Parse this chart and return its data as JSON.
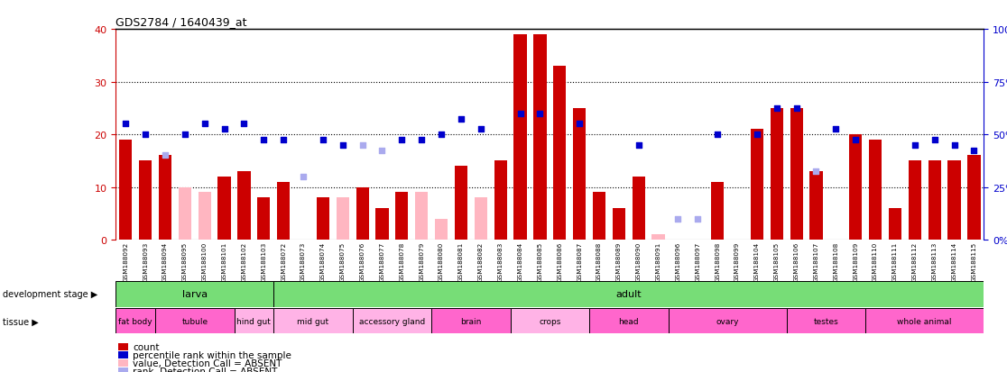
{
  "title": "GDS2784 / 1640439_at",
  "samples": [
    "GSM188092",
    "GSM188093",
    "GSM188094",
    "GSM188095",
    "GSM188100",
    "GSM188101",
    "GSM188102",
    "GSM188103",
    "GSM188072",
    "GSM188073",
    "GSM188074",
    "GSM188075",
    "GSM188076",
    "GSM188077",
    "GSM188078",
    "GSM188079",
    "GSM188080",
    "GSM188081",
    "GSM188082",
    "GSM188083",
    "GSM188084",
    "GSM188085",
    "GSM188086",
    "GSM188087",
    "GSM188088",
    "GSM188089",
    "GSM188090",
    "GSM188091",
    "GSM188096",
    "GSM188097",
    "GSM188098",
    "GSM188099",
    "GSM188104",
    "GSM188105",
    "GSM188106",
    "GSM188107",
    "GSM188108",
    "GSM188109",
    "GSM188110",
    "GSM188111",
    "GSM188112",
    "GSM188113",
    "GSM188114",
    "GSM188115"
  ],
  "count_values": [
    19,
    15,
    16,
    null,
    null,
    12,
    13,
    8,
    11,
    null,
    8,
    null,
    10,
    6,
    9,
    null,
    null,
    14,
    null,
    15,
    39,
    39,
    33,
    25,
    9,
    6,
    12,
    null,
    null,
    null,
    11,
    null,
    21,
    25,
    25,
    13,
    null,
    20,
    19,
    6,
    15,
    15,
    15,
    16
  ],
  "count_absent": [
    null,
    null,
    null,
    10,
    9,
    null,
    null,
    null,
    null,
    null,
    null,
    8,
    null,
    null,
    null,
    9,
    4,
    null,
    8,
    null,
    null,
    null,
    null,
    null,
    null,
    null,
    null,
    1,
    null,
    null,
    null,
    null,
    null,
    null,
    null,
    null,
    null,
    null,
    null,
    null,
    null,
    null,
    null,
    null
  ],
  "rank_values": [
    22,
    20,
    null,
    20,
    22,
    21,
    22,
    19,
    19,
    null,
    19,
    18,
    null,
    null,
    19,
    19,
    20,
    23,
    21,
    null,
    24,
    24,
    null,
    22,
    null,
    null,
    18,
    null,
    null,
    null,
    20,
    null,
    20,
    25,
    25,
    null,
    21,
    19,
    null,
    null,
    18,
    19,
    18,
    17
  ],
  "rank_absent": [
    null,
    null,
    16,
    null,
    null,
    null,
    null,
    null,
    null,
    12,
    null,
    null,
    18,
    17,
    null,
    null,
    null,
    null,
    null,
    null,
    null,
    null,
    null,
    null,
    null,
    null,
    null,
    null,
    4,
    4,
    null,
    null,
    null,
    null,
    null,
    13,
    null,
    null,
    null,
    null,
    null,
    null,
    null,
    null
  ],
  "development_stage": [
    {
      "label": "larva",
      "start": 0,
      "end": 7,
      "color": "#77DD77"
    },
    {
      "label": "adult",
      "start": 8,
      "end": 43,
      "color": "#77DD77"
    }
  ],
  "tissue": [
    {
      "label": "fat body",
      "start": 0,
      "end": 1,
      "color": "#FF66CC"
    },
    {
      "label": "tubule",
      "start": 2,
      "end": 5,
      "color": "#FF66CC"
    },
    {
      "label": "hind gut",
      "start": 6,
      "end": 7,
      "color": "#FFB3E6"
    },
    {
      "label": "mid gut",
      "start": 8,
      "end": 11,
      "color": "#FFB3E6"
    },
    {
      "label": "accessory gland",
      "start": 12,
      "end": 15,
      "color": "#FFB3E6"
    },
    {
      "label": "brain",
      "start": 16,
      "end": 19,
      "color": "#FF66CC"
    },
    {
      "label": "crops",
      "start": 20,
      "end": 23,
      "color": "#FFB3E6"
    },
    {
      "label": "head",
      "start": 24,
      "end": 27,
      "color": "#FF66CC"
    },
    {
      "label": "ovary",
      "start": 28,
      "end": 33,
      "color": "#FF66CC"
    },
    {
      "label": "testes",
      "start": 34,
      "end": 37,
      "color": "#FF66CC"
    },
    {
      "label": "whole animal",
      "start": 38,
      "end": 43,
      "color": "#FF66CC"
    }
  ],
  "ylim_left": [
    0,
    40
  ],
  "ylim_right": [
    0,
    100
  ],
  "yticks_left": [
    0,
    10,
    20,
    30,
    40
  ],
  "yticks_right": [
    0,
    25,
    50,
    75,
    100
  ],
  "bar_color": "#CC0000",
  "bar_absent_color": "#FFB6C1",
  "dot_color": "#0000CC",
  "dot_absent_color": "#AAAAEE",
  "axis_color_left": "#CC0000",
  "axis_color_right": "#0000CC",
  "background_color": "#FFFFFF",
  "plot_bg_color": "#FFFFFF"
}
